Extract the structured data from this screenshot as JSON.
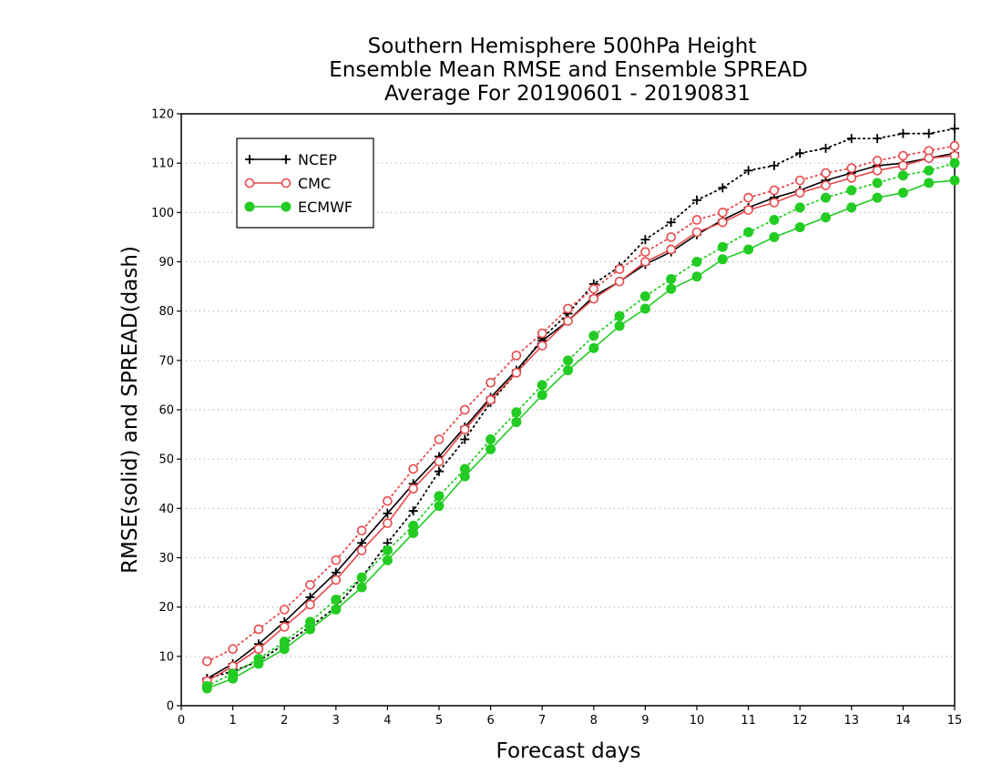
{
  "chart_data": {
    "type": "line",
    "title_lines": [
      "Southern Hemisphere 500hPa Height",
      "Ensemble Mean RMSE and Ensemble SPREAD",
      "Average For 20190601 - 20190831"
    ],
    "xlabel": "Forecast days",
    "ylabel": "RMSE(solid) and SPREAD(dash)",
    "xlim": [
      0,
      15
    ],
    "ylim": [
      0,
      120
    ],
    "xticks": [
      0,
      1,
      2,
      3,
      4,
      5,
      6,
      7,
      8,
      9,
      10,
      11,
      12,
      13,
      14,
      15
    ],
    "yticks": [
      0,
      10,
      20,
      30,
      40,
      50,
      60,
      70,
      80,
      90,
      100,
      110,
      120
    ],
    "grid": "horizontal dotted",
    "legend_position": "top-left",
    "x": [
      0.5,
      1,
      1.5,
      2,
      2.5,
      3,
      3.5,
      4,
      4.5,
      5,
      5.5,
      6,
      6.5,
      7,
      7.5,
      8,
      8.5,
      9,
      9.5,
      10,
      10.5,
      11,
      11.5,
      12,
      12.5,
      13,
      13.5,
      14,
      14.5,
      15
    ],
    "series": [
      {
        "name": "NCEP",
        "color": "#000000",
        "marker": "plus",
        "rmse": [
          5.5,
          8.5,
          12.5,
          17,
          22,
          27,
          33,
          39,
          45,
          50.5,
          56.5,
          62.5,
          68,
          74,
          78,
          83,
          86,
          89.5,
          92,
          95.5,
          98.5,
          101,
          103,
          104.5,
          106.5,
          108,
          109.5,
          110,
          111,
          112
        ],
        "spread": [
          5.5,
          7,
          9,
          12.5,
          16,
          20,
          26,
          33,
          39.5,
          47.5,
          54,
          61.5,
          67.5,
          74.5,
          79.5,
          85.5,
          89,
          94.5,
          98,
          102.5,
          105,
          108.5,
          109.5,
          112,
          113,
          115,
          115,
          116,
          116,
          117
        ]
      },
      {
        "name": "CMC",
        "color": "#e8484b",
        "marker": "open-circle",
        "rmse": [
          5,
          8,
          11.5,
          16,
          20.5,
          25.5,
          31.5,
          37,
          44,
          49.5,
          56,
          62,
          67.5,
          73,
          78,
          82.5,
          86,
          90,
          92.5,
          96,
          98,
          100.5,
          102,
          104,
          105.5,
          107,
          108.5,
          109.5,
          111,
          111.5
        ],
        "spread": [
          9,
          11.5,
          15.5,
          19.5,
          24.5,
          29.5,
          35.5,
          41.5,
          48,
          54,
          60,
          65.5,
          71,
          75.5,
          80.5,
          84.5,
          88.5,
          92,
          95,
          98.5,
          100,
          103,
          104.5,
          106.5,
          108,
          109,
          110.5,
          111.5,
          112.5,
          113.5
        ]
      },
      {
        "name": "ECMWF",
        "color": "#22cc22",
        "marker": "filled-circle",
        "rmse": [
          3.5,
          5.5,
          8.5,
          11.5,
          15.5,
          19.5,
          24,
          29.5,
          35,
          40.5,
          46.5,
          52,
          57.5,
          63,
          68,
          72.5,
          77,
          80.5,
          84.5,
          87,
          90.5,
          92.5,
          95,
          97,
          99,
          101,
          103,
          104,
          106,
          106.5
        ],
        "spread": [
          4,
          6.5,
          9.5,
          13,
          17,
          21.5,
          26,
          31.5,
          36.5,
          42.5,
          48,
          54,
          59.5,
          65,
          70,
          75,
          79,
          83,
          86.5,
          90,
          93,
          96,
          98.5,
          101,
          103,
          104.5,
          106,
          107.5,
          108.5,
          110
        ]
      }
    ]
  }
}
